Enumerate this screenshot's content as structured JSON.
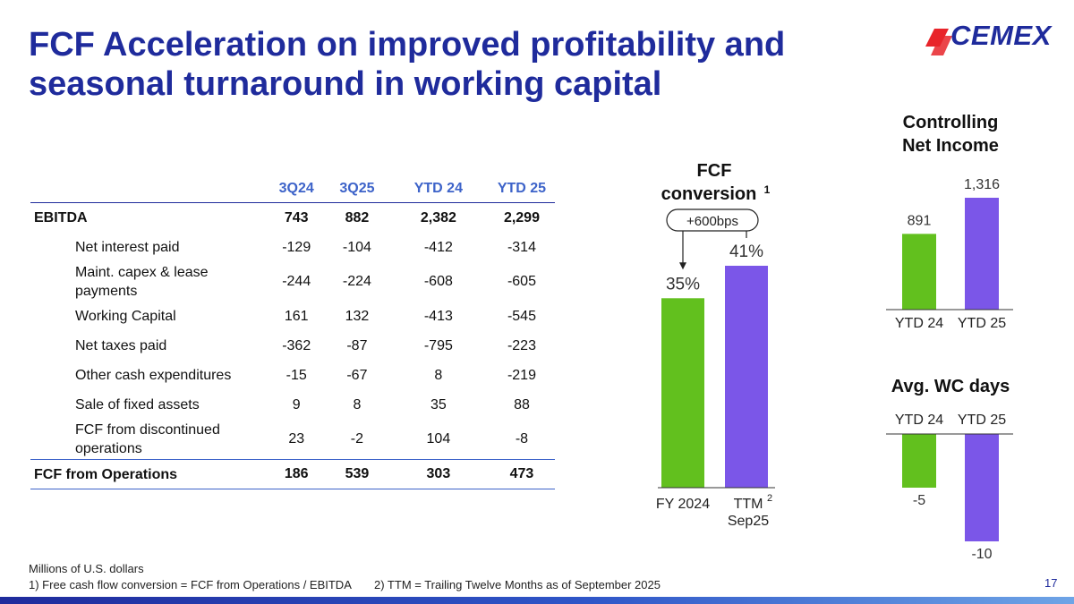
{
  "title": "FCF Acceleration on improved profitability and seasonal turnaround in working capital",
  "logo": {
    "text": "CEMEX"
  },
  "table": {
    "columns": [
      "3Q24",
      "3Q25",
      "YTD 24",
      "YTD 25"
    ],
    "rows": [
      {
        "label": "EBITDA",
        "values": [
          "743",
          "882",
          "2,382",
          "2,299"
        ]
      },
      {
        "label": "Net interest paid",
        "values": [
          "-129",
          "-104",
          "-412",
          "-314"
        ]
      },
      {
        "label": "Maint. capex & lease payments",
        "values": [
          "-244",
          "-224",
          "-608",
          "-605"
        ]
      },
      {
        "label": "Working Capital",
        "values": [
          "161",
          "132",
          "-413",
          "-545"
        ]
      },
      {
        "label": "Net taxes paid",
        "values": [
          "-362",
          "-87",
          "-795",
          "-223"
        ]
      },
      {
        "label": "Other cash expenditures",
        "values": [
          "-15",
          "-67",
          "8",
          "-219"
        ]
      },
      {
        "label": "Sale of fixed assets",
        "values": [
          "9",
          "8",
          "35",
          "88"
        ]
      },
      {
        "label": "FCF from discontinued operations",
        "values": [
          "23",
          "-2",
          "104",
          "-8"
        ]
      },
      {
        "label": "FCF from Operations",
        "values": [
          "186",
          "539",
          "303",
          "473"
        ]
      }
    ]
  },
  "colors": {
    "green": "#62c01e",
    "purple": "#7b56e8",
    "navy": "#1f2b9c",
    "header_blue": "#3d63c9"
  },
  "chart_data": [
    {
      "type": "bar",
      "title": "FCF conversion",
      "title_line1": "FCF",
      "title_line2": "conversion",
      "title_sup": "1",
      "categories": [
        "FY 2024",
        "TTM"
      ],
      "category_sup": [
        "",
        "2"
      ],
      "category_sub": [
        "",
        "Sep25"
      ],
      "values": [
        35,
        41
      ],
      "value_labels": [
        "35%",
        "41%"
      ],
      "unit": "%",
      "annotation": "+600bps",
      "ylim": [
        0,
        41
      ]
    },
    {
      "type": "bar",
      "title": "Controlling Net Income",
      "title_line1": "Controlling",
      "title_line2": "Net Income",
      "categories": [
        "YTD 24",
        "YTD 25"
      ],
      "values": [
        891,
        1316
      ],
      "value_labels": [
        "891",
        "1,316"
      ],
      "ylim": [
        0,
        1316
      ]
    },
    {
      "type": "bar",
      "title": "Avg. WC days",
      "categories": [
        "YTD 24",
        "YTD 25"
      ],
      "values": [
        -5,
        -10
      ],
      "value_labels": [
        "-5",
        "-10"
      ],
      "ylim": [
        -10,
        0
      ]
    }
  ],
  "footnotes": {
    "units": "Millions of U.S. dollars",
    "note1": "1) Free cash flow conversion = FCF from Operations / EBITDA",
    "note2": "2) TTM = Trailing Twelve Months as of September 2025"
  },
  "page_number": "17"
}
